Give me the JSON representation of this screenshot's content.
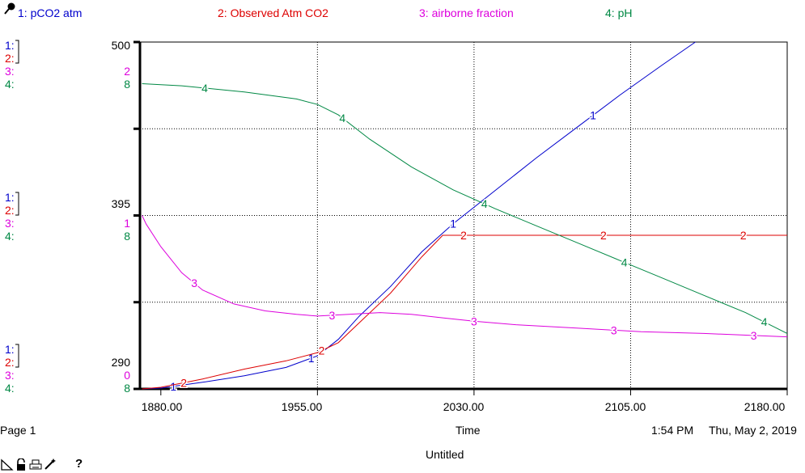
{
  "legend": {
    "items": [
      {
        "num": "1:",
        "name": "pCO2 atm",
        "color": "#0000CC"
      },
      {
        "num": "2:",
        "name": "Observed Atm CO2",
        "color": "#DD0000"
      },
      {
        "num": "3:",
        "name": "airborne fraction",
        "color": "#DD00DD"
      },
      {
        "num": "4:",
        "name": "pH",
        "color": "#008844"
      }
    ]
  },
  "scale_groups": [
    {
      "values": [
        "500",
        "",
        "2",
        "8"
      ]
    },
    {
      "values": [
        "395",
        "",
        "1",
        "8"
      ]
    },
    {
      "values": [
        "290",
        "",
        "0",
        "8"
      ]
    }
  ],
  "chart_data": {
    "type": "line",
    "xlabel": "Time",
    "x_ticks": [
      "1880.00",
      "1955.00",
      "2030.00",
      "2105.00",
      "2180.00"
    ],
    "xlim": [
      1870,
      2180
    ],
    "ylim": [
      290,
      500
    ],
    "grid": true,
    "series": [
      {
        "name": "pCO2 atm",
        "marker": "1",
        "color": "#0000CC",
        "points": [
          [
            1871,
            290
          ],
          [
            1880,
            290.5
          ],
          [
            1900,
            294
          ],
          [
            1920,
            298
          ],
          [
            1940,
            303
          ],
          [
            1955,
            310
          ],
          [
            1965,
            320
          ],
          [
            1975,
            334
          ],
          [
            1990,
            352
          ],
          [
            2005,
            373
          ],
          [
            2020,
            390
          ],
          [
            2040,
            410
          ],
          [
            2060,
            430
          ],
          [
            2080,
            449
          ],
          [
            2100,
            468
          ],
          [
            2120,
            486
          ],
          [
            2136,
            500
          ]
        ]
      },
      {
        "name": "Observed Atm CO2",
        "marker": "2",
        "color": "#DD0000",
        "points": [
          [
            1871,
            290
          ],
          [
            1880,
            291
          ],
          [
            1900,
            296
          ],
          [
            1920,
            302
          ],
          [
            1940,
            307
          ],
          [
            1955,
            312
          ],
          [
            1965,
            318
          ],
          [
            1975,
            330
          ],
          [
            1990,
            348
          ],
          [
            2005,
            370
          ],
          [
            2015,
            383
          ],
          [
            2030,
            383
          ],
          [
            2060,
            383
          ],
          [
            2100,
            383
          ],
          [
            2140,
            383
          ],
          [
            2180,
            383
          ]
        ]
      },
      {
        "name": "airborne fraction",
        "marker": "3",
        "color": "#DD00DD",
        "scale_range": [
          0,
          2
        ],
        "points": [
          [
            1871,
            1.0
          ],
          [
            1873,
            0.95
          ],
          [
            1880,
            0.82
          ],
          [
            1890,
            0.67
          ],
          [
            1900,
            0.57
          ],
          [
            1915,
            0.49
          ],
          [
            1930,
            0.45
          ],
          [
            1945,
            0.43
          ],
          [
            1955,
            0.42
          ],
          [
            1970,
            0.43
          ],
          [
            1985,
            0.44
          ],
          [
            2000,
            0.43
          ],
          [
            2015,
            0.41
          ],
          [
            2030,
            0.39
          ],
          [
            2050,
            0.37
          ],
          [
            2080,
            0.35
          ],
          [
            2110,
            0.33
          ],
          [
            2140,
            0.32
          ],
          [
            2180,
            0.3
          ]
        ]
      },
      {
        "name": "pH",
        "marker": "4",
        "color": "#008844",
        "scale_range": [
          7.8,
          8.3
        ],
        "points": [
          [
            1871,
            8.24
          ],
          [
            1890,
            8.237
          ],
          [
            1920,
            8.228
          ],
          [
            1945,
            8.218
          ],
          [
            1955,
            8.21
          ],
          [
            1965,
            8.195
          ],
          [
            1980,
            8.16
          ],
          [
            2000,
            8.12
          ],
          [
            2020,
            8.087
          ],
          [
            2040,
            8.06
          ],
          [
            2060,
            8.035
          ],
          [
            2080,
            8.01
          ],
          [
            2100,
            7.985
          ],
          [
            2120,
            7.96
          ],
          [
            2140,
            7.935
          ],
          [
            2160,
            7.91
          ],
          [
            2180,
            7.88
          ]
        ]
      }
    ]
  },
  "footer": {
    "page": "Page 1",
    "time_label": "Time",
    "timestamp_time": "1:54 PM",
    "timestamp_date": "Thu, May 2, 2019",
    "doc_title": "Untitled"
  },
  "toolbar": {
    "help": "?"
  }
}
